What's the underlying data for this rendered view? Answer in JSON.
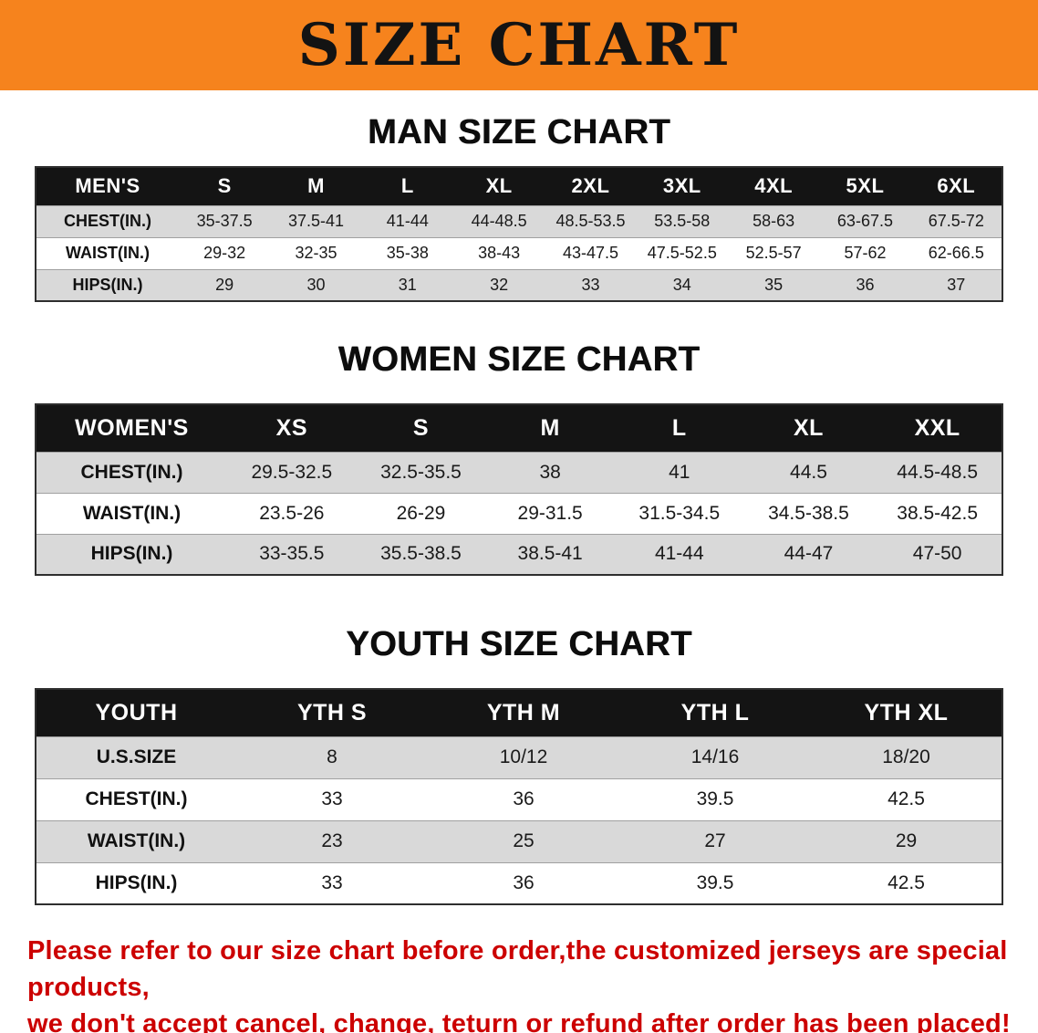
{
  "banner": {
    "title": "SIZE CHART",
    "bg_color": "#f6831d"
  },
  "sections": [
    {
      "heading": "MAN SIZE CHART",
      "table": {
        "header": [
          "MEN'S",
          "S",
          "M",
          "L",
          "XL",
          "2XL",
          "3XL",
          "4XL",
          "5XL",
          "6XL"
        ],
        "rows": [
          [
            "CHEST(IN.)",
            "35-37.5",
            "37.5-41",
            "41-44",
            "44-48.5",
            "48.5-53.5",
            "53.5-58",
            "58-63",
            "63-67.5",
            "67.5-72"
          ],
          [
            "WAIST(IN.)",
            "29-32",
            "32-35",
            "35-38",
            "38-43",
            "43-47.5",
            "47.5-52.5",
            "52.5-57",
            "57-62",
            "62-66.5"
          ],
          [
            "HIPS(IN.)",
            "29",
            "30",
            "31",
            "32",
            "33",
            "34",
            "35",
            "36",
            "37"
          ]
        ]
      }
    },
    {
      "heading": "WOMEN SIZE CHART",
      "table": {
        "header": [
          "WOMEN'S",
          "XS",
          "S",
          "M",
          "L",
          "XL",
          "XXL"
        ],
        "rows": [
          [
            "CHEST(IN.)",
            "29.5-32.5",
            "32.5-35.5",
            "38",
            "41",
            "44.5",
            "44.5-48.5"
          ],
          [
            "WAIST(IN.)",
            "23.5-26",
            "26-29",
            "29-31.5",
            "31.5-34.5",
            "34.5-38.5",
            "38.5-42.5"
          ],
          [
            "HIPS(IN.)",
            "33-35.5",
            "35.5-38.5",
            "38.5-41",
            "41-44",
            "44-47",
            "47-50"
          ]
        ]
      }
    },
    {
      "heading": "YOUTH SIZE CHART",
      "table": {
        "header": [
          "YOUTH",
          "YTH S",
          "YTH M",
          "YTH L",
          "YTH XL"
        ],
        "rows": [
          [
            "U.S.SIZE",
            "8",
            "10/12",
            "14/16",
            "18/20"
          ],
          [
            "CHEST(IN.)",
            "33",
            "36",
            "39.5",
            "42.5"
          ],
          [
            "WAIST(IN.)",
            "23",
            "25",
            "27",
            "29"
          ],
          [
            "HIPS(IN.)",
            "33",
            "36",
            "39.5",
            "42.5"
          ]
        ]
      }
    }
  ],
  "disclaimer": {
    "line1": "Please refer to our size chart before order,the customized jerseys are special products,",
    "line2": "we don't accept cancel, change, teturn or refund after order has been placed!",
    "color": "#cc0000"
  }
}
